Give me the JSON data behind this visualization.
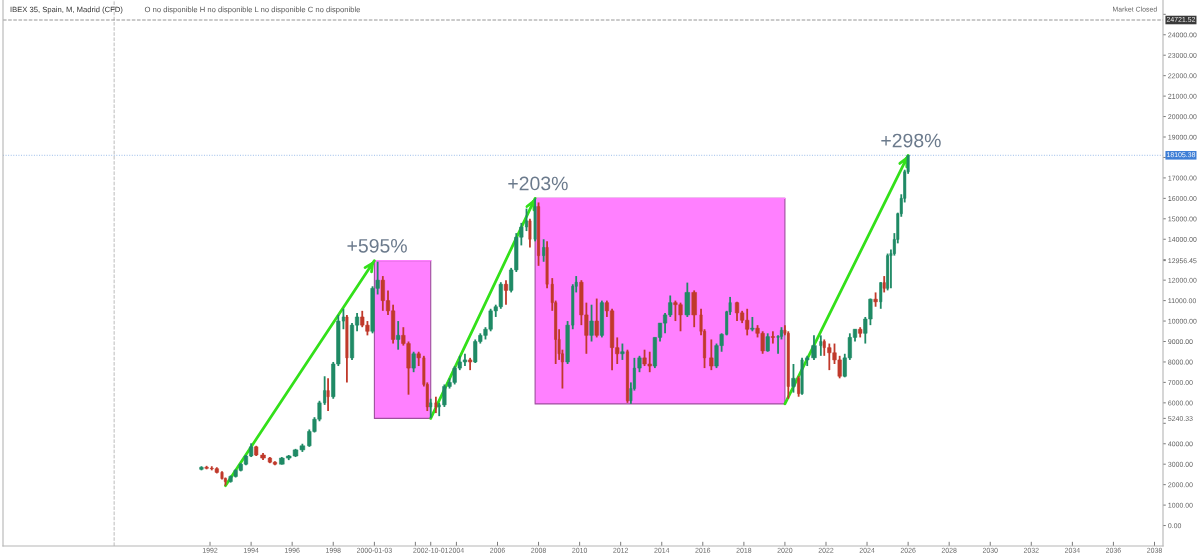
{
  "chart_data": {
    "type": "candlestick",
    "title": "IBEX 35, Spain, M, Madrid (CFD)",
    "subtitle": "O no disponible H no disponible L no disponible C no disponible",
    "annotations": [
      "Market Closed",
      {
        "text": "+595%",
        "x": "2000-01",
        "y": 12950
      },
      {
        "text": "+203%",
        "x": "2007-11",
        "y": 16000
      },
      {
        "text": "+298%",
        "x": "2026-01",
        "y": 18100
      }
    ],
    "x": [
      "1991-08",
      "1991-11",
      "1992-02",
      "1992-05",
      "1992-08",
      "1992-10",
      "1993-01",
      "1993-04",
      "1993-07",
      "1993-10",
      "1994-01",
      "1994-04",
      "1994-08",
      "1994-12",
      "1995-03",
      "1995-07",
      "1995-11",
      "1996-03",
      "1996-07",
      "1996-11",
      "1997-02",
      "1997-05",
      "1997-08",
      "1997-10",
      "1998-01",
      "1998-04",
      "1998-07",
      "1998-09",
      "1998-12",
      "1999-03",
      "1999-06",
      "1999-09",
      "1999-12",
      "2000-03",
      "2000-06",
      "2000-09",
      "2000-12",
      "2001-03",
      "2001-06",
      "2001-09",
      "2001-12",
      "2002-03",
      "2002-06",
      "2002-08",
      "2002-10",
      "2003-01",
      "2003-03",
      "2003-06",
      "2003-09",
      "2003-12",
      "2004-03",
      "2004-06",
      "2004-09",
      "2004-12",
      "2005-03",
      "2005-06",
      "2005-09",
      "2005-12",
      "2006-03",
      "2006-06",
      "2006-09",
      "2006-12",
      "2007-03",
      "2007-06",
      "2007-08",
      "2007-11",
      "2008-01",
      "2008-04",
      "2008-06",
      "2008-09",
      "2008-11",
      "2009-01",
      "2009-03",
      "2009-06",
      "2009-09",
      "2009-11",
      "2010-02",
      "2010-05",
      "2010-08",
      "2010-11",
      "2011-02",
      "2011-05",
      "2011-08",
      "2011-11",
      "2012-02",
      "2012-05",
      "2012-07",
      "2012-09",
      "2012-12",
      "2013-03",
      "2013-06",
      "2013-09",
      "2013-12",
      "2014-03",
      "2014-06",
      "2014-09",
      "2014-12",
      "2015-04",
      "2015-08",
      "2015-12",
      "2016-02",
      "2016-06",
      "2016-09",
      "2016-12",
      "2017-03",
      "2017-05",
      "2017-09",
      "2017-12",
      "2018-03",
      "2018-06",
      "2018-09",
      "2018-12",
      "2019-03",
      "2019-06",
      "2019-09",
      "2019-11",
      "2020-01",
      "2020-03",
      "2020-06",
      "2020-09",
      "2020-11",
      "2021-02",
      "2021-06",
      "2021-10",
      "2021-12",
      "2022-03",
      "2022-06",
      "2022-09",
      "2022-12",
      "2023-03",
      "2023-06",
      "2023-09",
      "2023-12",
      "2024-03",
      "2024-06",
      "2024-09",
      "2024-11",
      "2025-01",
      "2025-03",
      "2025-05",
      "2025-07",
      "2025-09",
      "2025-11",
      "2026-01"
    ],
    "ohlc": [
      [
        2750,
        2900,
        2700,
        2850
      ],
      [
        2850,
        2920,
        2750,
        2800
      ],
      [
        2800,
        2900,
        2700,
        2780
      ],
      [
        2780,
        2850,
        2550,
        2600
      ],
      [
        2600,
        2650,
        2250,
        2300
      ],
      [
        2300,
        2350,
        1950,
        2150
      ],
      [
        2150,
        2450,
        2100,
        2400
      ],
      [
        2400,
        2750,
        2350,
        2700
      ],
      [
        2700,
        3050,
        2650,
        3000
      ],
      [
        3000,
        3450,
        2950,
        3400
      ],
      [
        3400,
        4020,
        3350,
        3850
      ],
      [
        3850,
        3900,
        3400,
        3450
      ],
      [
        3450,
        3550,
        3200,
        3300
      ],
      [
        3300,
        3350,
        3050,
        3100
      ],
      [
        3100,
        3150,
        2950,
        3000
      ],
      [
        3000,
        3350,
        2980,
        3300
      ],
      [
        3300,
        3450,
        3200,
        3400
      ],
      [
        3400,
        3750,
        3350,
        3700
      ],
      [
        3700,
        4000,
        3600,
        3900
      ],
      [
        3900,
        4700,
        3850,
        4600
      ],
      [
        4600,
        5300,
        4550,
        5200
      ],
      [
        5200,
        6100,
        5100,
        6000
      ],
      [
        6000,
        7300,
        5900,
        6600
      ],
      [
        6600,
        7200,
        5600,
        6300
      ],
      [
        6300,
        8000,
        6200,
        7900
      ],
      [
        7900,
        10300,
        7800,
        10000
      ],
      [
        10000,
        10600,
        9600,
        10200
      ],
      [
        10200,
        10300,
        7000,
        8200
      ],
      [
        8200,
        9900,
        8100,
        9800
      ],
      [
        9800,
        10400,
        9500,
        10200
      ],
      [
        10200,
        10500,
        9700,
        9800
      ],
      [
        9800,
        10000,
        9300,
        9500
      ],
      [
        9500,
        11700,
        9400,
        11600
      ],
      [
        11600,
        12900,
        11300,
        12000
      ],
      [
        12000,
        12200,
        10500,
        11000
      ],
      [
        11000,
        11500,
        10300,
        10500
      ],
      [
        10500,
        10800,
        8900,
        9100
      ],
      [
        9100,
        10000,
        8600,
        9300
      ],
      [
        9300,
        9700,
        8800,
        8900
      ],
      [
        8900,
        9000,
        6400,
        7700
      ],
      [
        7700,
        8500,
        7500,
        8400
      ],
      [
        8400,
        8500,
        7800,
        8200
      ],
      [
        8200,
        8300,
        6800,
        6900
      ],
      [
        6900,
        7000,
        5600,
        5800
      ],
      [
        5800,
        6200,
        5260,
        6000
      ],
      [
        6000,
        6300,
        5500,
        5800
      ],
      [
        5800,
        6000,
        5350,
        5900
      ],
      [
        5900,
        6900,
        5800,
        6800
      ],
      [
        6800,
        7200,
        6700,
        7000
      ],
      [
        7000,
        7800,
        6900,
        7700
      ],
      [
        7700,
        8300,
        7600,
        8000
      ],
      [
        8000,
        8400,
        7800,
        8100
      ],
      [
        8100,
        8200,
        7600,
        8000
      ],
      [
        8000,
        9100,
        7950,
        9000
      ],
      [
        9000,
        9400,
        8900,
        9300
      ],
      [
        9300,
        9700,
        9100,
        9600
      ],
      [
        9600,
        10600,
        9500,
        10500
      ],
      [
        10500,
        10800,
        10200,
        10700
      ],
      [
        10700,
        11900,
        10600,
        11800
      ],
      [
        11800,
        12000,
        10800,
        11500
      ],
      [
        11500,
        12600,
        11400,
        12500
      ],
      [
        12500,
        14300,
        12400,
        14100
      ],
      [
        14100,
        14800,
        13700,
        14600
      ],
      [
        14600,
        15500,
        14400,
        14900
      ],
      [
        14900,
        15000,
        13600,
        14000
      ],
      [
        14000,
        16000,
        13900,
        15600
      ],
      [
        15600,
        15800,
        12700,
        13200
      ],
      [
        13200,
        14000,
        12900,
        13600
      ],
      [
        13600,
        13900,
        11600,
        11800
      ],
      [
        11800,
        12100,
        10500,
        10900
      ],
      [
        10900,
        11000,
        7900,
        9100
      ],
      [
        9100,
        9600,
        8100,
        8400
      ],
      [
        8400,
        8600,
        6700,
        8000
      ],
      [
        8000,
        10000,
        7900,
        9800
      ],
      [
        9800,
        11800,
        9600,
        11700
      ],
      [
        11700,
        12200,
        11400,
        11900
      ],
      [
        11900,
        12000,
        9800,
        10300
      ],
      [
        10300,
        10900,
        8400,
        9300
      ],
      [
        9300,
        10800,
        9000,
        10000
      ],
      [
        10000,
        11100,
        9200,
        9300
      ],
      [
        9300,
        11000,
        9200,
        10900
      ],
      [
        10900,
        11000,
        10200,
        10500
      ],
      [
        10500,
        10600,
        7600,
        8700
      ],
      [
        8700,
        9200,
        7900,
        8400
      ],
      [
        8400,
        8900,
        8100,
        8500
      ],
      [
        8500,
        8600,
        6000,
        6100
      ],
      [
        6100,
        7000,
        5950,
        6700
      ],
      [
        6700,
        8200,
        6600,
        7700
      ],
      [
        7700,
        8300,
        7500,
        8200
      ],
      [
        8200,
        8600,
        7800,
        7900
      ],
      [
        7900,
        8500,
        7500,
        7800
      ],
      [
        7800,
        9200,
        7700,
        9200
      ],
      [
        9200,
        9900,
        9000,
        9900
      ],
      [
        9900,
        10400,
        9400,
        10300
      ],
      [
        10300,
        11250,
        10200,
        10900
      ],
      [
        10900,
        11000,
        10000,
        10800
      ],
      [
        10800,
        10900,
        9500,
        10300
      ],
      [
        10300,
        11880,
        10200,
        11400
      ],
      [
        11400,
        11500,
        9700,
        10300
      ],
      [
        10300,
        10600,
        9300,
        9500
      ],
      [
        9500,
        9600,
        7700,
        8200
      ],
      [
        8200,
        9100,
        7600,
        7800
      ],
      [
        7800,
        8900,
        7700,
        8800
      ],
      [
        8800,
        9400,
        8500,
        9350
      ],
      [
        9350,
        10500,
        9300,
        10450
      ],
      [
        10450,
        11180,
        10300,
        10900
      ],
      [
        10900,
        10950,
        10000,
        10400
      ],
      [
        10400,
        10500,
        9900,
        10040
      ],
      [
        10040,
        10600,
        9300,
        9600
      ],
      [
        9600,
        10200,
        9500,
        9650
      ],
      [
        9650,
        9800,
        9200,
        9400
      ],
      [
        9400,
        9500,
        8400,
        8540
      ],
      [
        8540,
        9400,
        8500,
        9240
      ],
      [
        9240,
        9500,
        8900,
        9200
      ],
      [
        9200,
        9300,
        8400,
        9250
      ],
      [
        9250,
        9700,
        9100,
        9550
      ],
      [
        9550,
        9800,
        9300,
        9400
      ],
      [
        9400,
        9500,
        6200,
        6800
      ],
      [
        6800,
        7900,
        6500,
        7200
      ],
      [
        7200,
        7300,
        6300,
        6450
      ],
      [
        6450,
        8200,
        6400,
        8100
      ],
      [
        8100,
        8300,
        7800,
        8200
      ],
      [
        8200,
        9300,
        8100,
        8800
      ],
      [
        8800,
        9300,
        8300,
        9000
      ],
      [
        9000,
        9100,
        8300,
        8700
      ],
      [
        8700,
        8900,
        7600,
        8450
      ],
      [
        8450,
        8900,
        7900,
        8100
      ],
      [
        8100,
        8300,
        7200,
        7300
      ],
      [
        7300,
        8400,
        7250,
        8200
      ],
      [
        8200,
        9400,
        8100,
        9200
      ],
      [
        9200,
        9600,
        9000,
        9600
      ],
      [
        9600,
        9700,
        9200,
        9400
      ],
      [
        9400,
        10200,
        8900,
        10100
      ],
      [
        10100,
        11100,
        9800,
        11070
      ],
      [
        11070,
        11400,
        10700,
        10940
      ],
      [
        10940,
        11900,
        10600,
        11880
      ],
      [
        11880,
        12200,
        11400,
        11600
      ],
      [
        11600,
        13300,
        11500,
        13200
      ],
      [
        13200,
        13500,
        11600,
        13300
      ],
      [
        13300,
        14300,
        13200,
        13990
      ],
      [
        13990,
        15300,
        13800,
        15250
      ],
      [
        15250,
        16200,
        15100,
        16000
      ],
      [
        16000,
        17400,
        15800,
        17300
      ],
      [
        17300,
        18105.38,
        17200,
        18105.38
      ]
    ],
    "colors": [
      "#1f8a65",
      "#c0392b",
      "#c0392b",
      "#c0392b",
      "#c0392b",
      "#c0392b",
      "#1f8a65",
      "#1f8a65",
      "#1f8a65",
      "#1f8a65",
      "#1f8a65",
      "#c0392b",
      "#c0392b",
      "#c0392b",
      "#c0392b",
      "#1f8a65",
      "#1f8a65",
      "#1f8a65",
      "#1f8a65",
      "#1f8a65",
      "#1f8a65",
      "#1f8a65",
      "#1f8a65",
      "#c0392b",
      "#1f8a65",
      "#1f8a65",
      "#1f8a65",
      "#c0392b",
      "#1f8a65",
      "#1f8a65",
      "#c0392b",
      "#c0392b",
      "#1f8a65",
      "#1f8a65",
      "#c0392b",
      "#c0392b",
      "#c0392b",
      "#1f8a65",
      "#c0392b",
      "#c0392b",
      "#1f8a65",
      "#c0392b",
      "#c0392b",
      "#c0392b",
      "#1f8a65",
      "#c0392b",
      "#1f8a65",
      "#1f8a65",
      "#1f8a65",
      "#1f8a65",
      "#1f8a65",
      "#1f8a65",
      "#c0392b",
      "#1f8a65",
      "#1f8a65",
      "#1f8a65",
      "#1f8a65",
      "#1f8a65",
      "#1f8a65",
      "#c0392b",
      "#1f8a65",
      "#1f8a65",
      "#1f8a65",
      "#1f8a65",
      "#c0392b",
      "#1f8a65",
      "#c0392b",
      "#1f8a65",
      "#c0392b",
      "#c0392b",
      "#c0392b",
      "#c0392b",
      "#c0392b",
      "#1f8a65",
      "#1f8a65",
      "#1f8a65",
      "#c0392b",
      "#c0392b",
      "#1f8a65",
      "#c0392b",
      "#1f8a65",
      "#c0392b",
      "#c0392b",
      "#c0392b",
      "#1f8a65",
      "#c0392b",
      "#1f8a65",
      "#1f8a65",
      "#1f8a65",
      "#c0392b",
      "#c0392b",
      "#1f8a65",
      "#1f8a65",
      "#1f8a65",
      "#1f8a65",
      "#c0392b",
      "#c0392b",
      "#1f8a65",
      "#c0392b",
      "#c0392b",
      "#c0392b",
      "#c0392b",
      "#1f8a65",
      "#1f8a65",
      "#1f8a65",
      "#1f8a65",
      "#c0392b",
      "#c0392b",
      "#c0392b",
      "#1f8a65",
      "#c0392b",
      "#c0392b",
      "#1f8a65",
      "#c0392b",
      "#1f8a65",
      "#1f8a65",
      "#c0392b",
      "#c0392b",
      "#1f8a65",
      "#c0392b",
      "#1f8a65",
      "#1f8a65",
      "#1f8a65",
      "#1f8a65",
      "#c0392b",
      "#c0392b",
      "#c0392b",
      "#c0392b",
      "#1f8a65",
      "#1f8a65",
      "#1f8a65",
      "#c0392b",
      "#1f8a65",
      "#1f8a65",
      "#c0392b",
      "#1f8a65",
      "#c0392b",
      "#1f8a65",
      "#1f8a65",
      "#1f8a65",
      "#1f8a65",
      "#1f8a65",
      "#1f8a65",
      "#1f8a65"
    ],
    "series": [
      {
        "type": "line",
        "color": "#ff80ff",
        "x": [
          "2000-01-03",
          "2002-10-01"
        ],
        "values": [
          12956.45,
          12956.45
        ],
        "lower": [
          5240.33,
          5240.33
        ],
        "upper": [
          12956.45,
          12956.45
        ]
      },
      {
        "type": "line",
        "color": "#ff80ff",
        "x": [
          "2007-11",
          "2020-01"
        ],
        "values": [
          16000,
          16000
        ],
        "lower": [
          5950,
          5950
        ],
        "upper": [
          16000,
          16000
        ]
      },
      {
        "type": "line",
        "color": "#33e01a",
        "x": [
          "1992-10",
          "2000-01"
        ],
        "values": [
          1950,
          12950
        ]
      },
      {
        "type": "line",
        "color": "#33e01a",
        "x": [
          "2002-10",
          "2007-11"
        ],
        "values": [
          5240,
          16000
        ]
      },
      {
        "type": "line",
        "color": "#33e01a",
        "x": [
          "2020-01",
          "2026-01"
        ],
        "values": [
          5950,
          18100
        ]
      }
    ],
    "xlim": [
      "1981-12",
      "2038-06"
    ],
    "ylim": [
      -1000,
      25700
    ],
    "xticks": [
      "1992",
      "1994",
      "1996",
      "1998",
      {
        "value": "2000-01-03",
        "label": "2000-01-03"
      },
      {
        "value": "2002",
        "label": null
      },
      {
        "value": "2002-10-01",
        "label": "2002-10-01"
      },
      "2004",
      "2006",
      "2008",
      "2010",
      "2012",
      "2014",
      "2016",
      "2018",
      "2020",
      "2022",
      "2024",
      "2026",
      "2028",
      "2030",
      "2032",
      "2034",
      "2036",
      "2038"
    ],
    "yticks": [
      {
        "value": 0,
        "label": "0.00"
      },
      {
        "value": 1000,
        "label": "1000.00"
      },
      {
        "value": 2000,
        "label": "2000.00"
      },
      {
        "value": 3000,
        "label": "3000.00"
      },
      {
        "value": 4000,
        "label": "4000.00"
      },
      {
        "value": 5000,
        "label": null
      },
      {
        "value": 5240.33,
        "label": "5240.33"
      },
      {
        "value": 6000,
        "label": "6000.00"
      },
      {
        "value": 7000,
        "label": "7000.00"
      },
      {
        "value": 8000,
        "label": "8000.00"
      },
      {
        "value": 9000,
        "label": "9000.00"
      },
      {
        "value": 10000,
        "label": "10000.00"
      },
      {
        "value": 11000,
        "label": "11000.00"
      },
      {
        "value": 12000,
        "label": "12000.00"
      },
      {
        "value": 12956.45,
        "label": "12956.45"
      },
      {
        "value": 13000,
        "label": null
      },
      {
        "value": 14000,
        "label": "14000.00"
      },
      {
        "value": 15000,
        "label": "15000.00"
      },
      {
        "value": 16000,
        "label": "16000.00"
      },
      {
        "value": 17000,
        "label": "17000.00"
      },
      {
        "value": 18000,
        "label": null
      },
      {
        "value": 19000,
        "label": "19000.00"
      },
      {
        "value": 20000,
        "label": "20000.00"
      },
      {
        "value": 21000,
        "label": "21000.00"
      },
      {
        "value": 22000,
        "label": "22000.00"
      },
      {
        "value": 23000,
        "label": "23000.00"
      },
      {
        "value": 24000,
        "label": "24000.00"
      },
      {
        "value": 25000,
        "label": null
      }
    ],
    "ref_lines": [
      {
        "axis": "x",
        "value": "1987-05",
        "line_style": "dashed",
        "color": "#9a9a9a"
      },
      {
        "axis": "y",
        "value": 24721.52,
        "label": "24721.52",
        "line_style": "dashed",
        "color": "#3a3a3a"
      },
      {
        "axis": "y",
        "value": 18105.38,
        "label": "18105.38",
        "line_style": "dotted",
        "color": "#3f7fd6"
      }
    ]
  }
}
